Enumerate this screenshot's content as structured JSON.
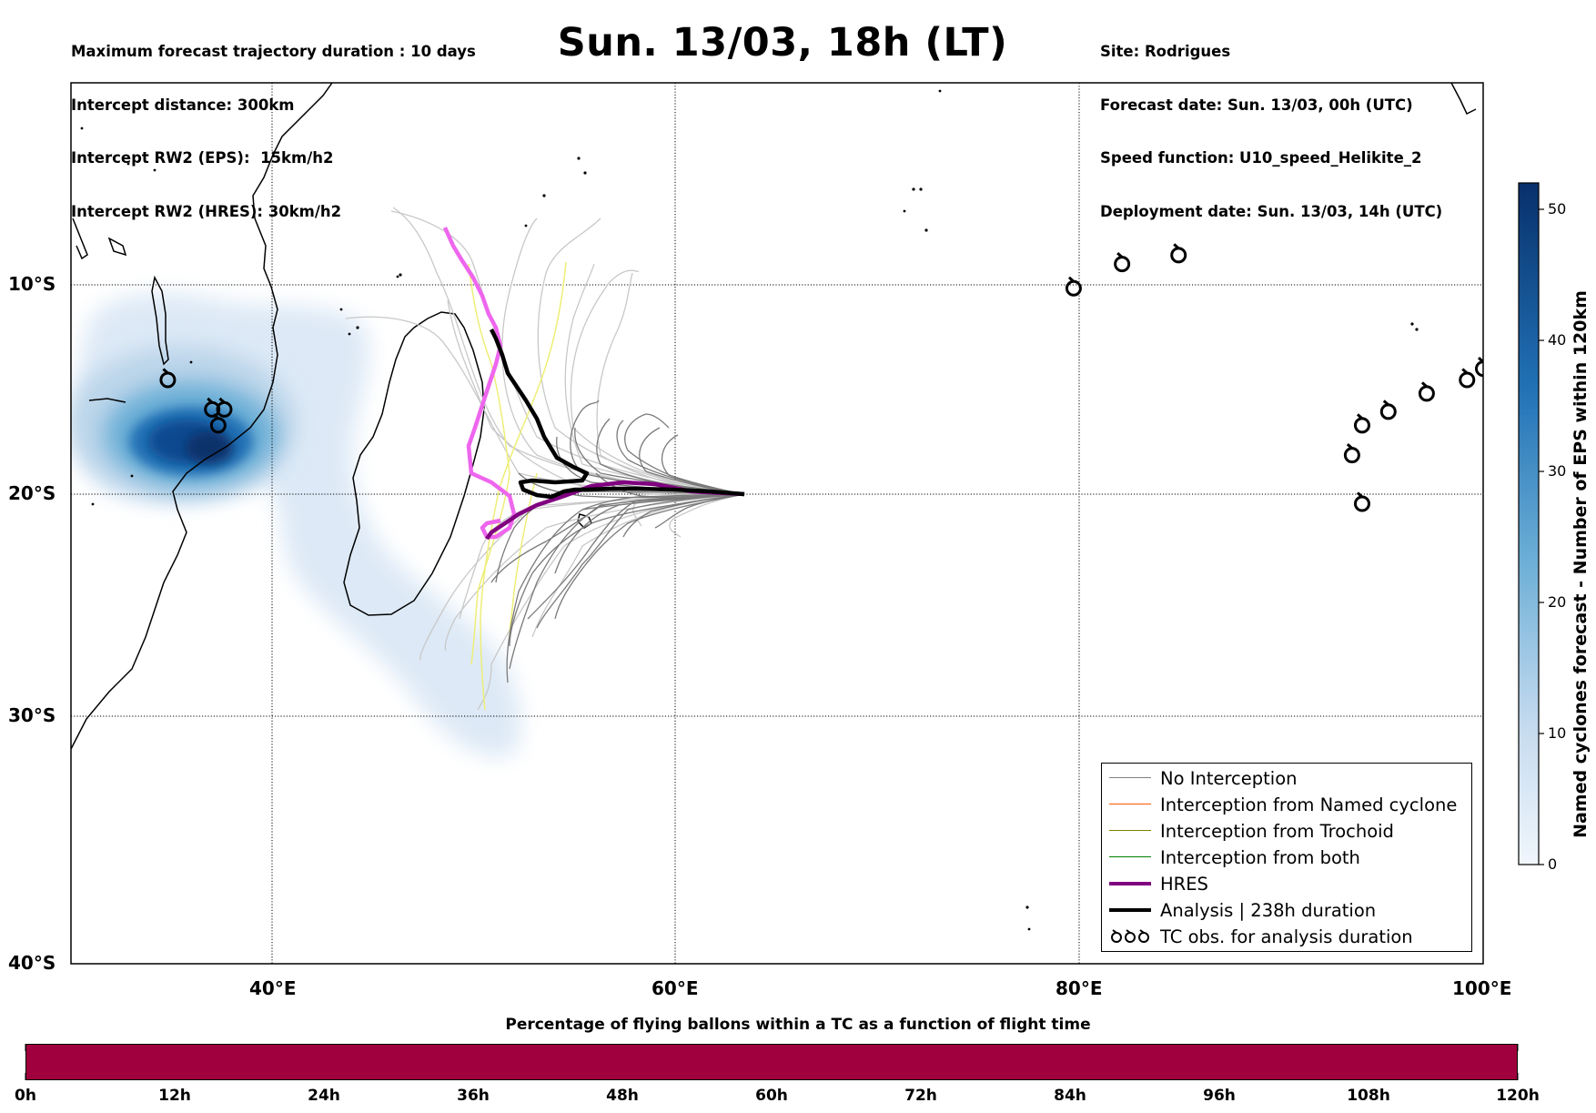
{
  "header_left": [
    "Maximum forecast trajectory duration : 10 days",
    "Intercept distance: 300km",
    "Intercept RW2 (EPS):  15km/h2",
    "Intercept RW2 (HRES): 30km/h2"
  ],
  "header_right": [
    "Site: Rodrigues",
    "Forecast date: Sun. 13/03, 00h (UTC)",
    "Speed function: U10_speed_Helikite_2",
    "Deployment date: Sun. 13/03, 14h (UTC)"
  ],
  "title": "Sun. 13/03, 18h (LT)",
  "map": {
    "lon_range": [
      30,
      100
    ],
    "lat_range": [
      -40,
      -3
    ],
    "lon_ticks": [
      "40°E",
      "60°E",
      "80°E",
      "100°E"
    ],
    "lat_ticks": [
      "10°S",
      "20°S",
      "30°S",
      "40°S"
    ],
    "launch_site": [
      63.5,
      -19.7
    ],
    "tc_obs": [
      [
        34.8,
        -16.5
      ],
      [
        37.0,
        -17.8
      ],
      [
        37.6,
        -17.8
      ],
      [
        37.3,
        -18.5
      ],
      [
        79.7,
        -12.4
      ],
      [
        82.1,
        -11.3
      ],
      [
        84.9,
        -10.9
      ],
      [
        93.5,
        -19.8
      ],
      [
        94.0,
        -18.5
      ],
      [
        95.3,
        -17.9
      ],
      [
        97.2,
        -17.1
      ],
      [
        99.2,
        -16.5
      ],
      [
        100.0,
        -16.0
      ],
      [
        94.0,
        -21.9
      ]
    ],
    "colors": {
      "no_interception": "#808080",
      "named_cyclone": "#ff5500",
      "trochoid": "#808000",
      "both": "#008000",
      "hres": "#800080",
      "analysis": "#000000",
      "pink_track": "#ee66ee",
      "yellow_track": "#eeee77"
    }
  },
  "colorbar": {
    "title": "Named cyclones forecast - Number of EPS within 120km",
    "ticks": [
      "0",
      "10",
      "20",
      "30",
      "40",
      "50"
    ],
    "range": [
      0,
      52
    ]
  },
  "legend": {
    "items": [
      {
        "label": "No Interception",
        "color": "#808080"
      },
      {
        "label": "Interception from Named cyclone",
        "color": "#ff5500"
      },
      {
        "label": "Interception from Trochoid",
        "color": "#808000"
      },
      {
        "label": "Interception from both",
        "color": "#008000"
      },
      {
        "label": "HRES",
        "color": "#800080"
      },
      {
        "label": "Analysis | 238h duration",
        "color": "#000000"
      },
      {
        "label": "TC obs. for analysis duration",
        "color": "#000000"
      }
    ]
  },
  "time_bar": {
    "title": "Percentage of flying ballons within a TC as a function of flight time",
    "color": "#a0003d",
    "ticks": [
      "0h",
      "12h",
      "24h",
      "36h",
      "48h",
      "60h",
      "72h",
      "84h",
      "96h",
      "108h",
      "120h"
    ]
  }
}
